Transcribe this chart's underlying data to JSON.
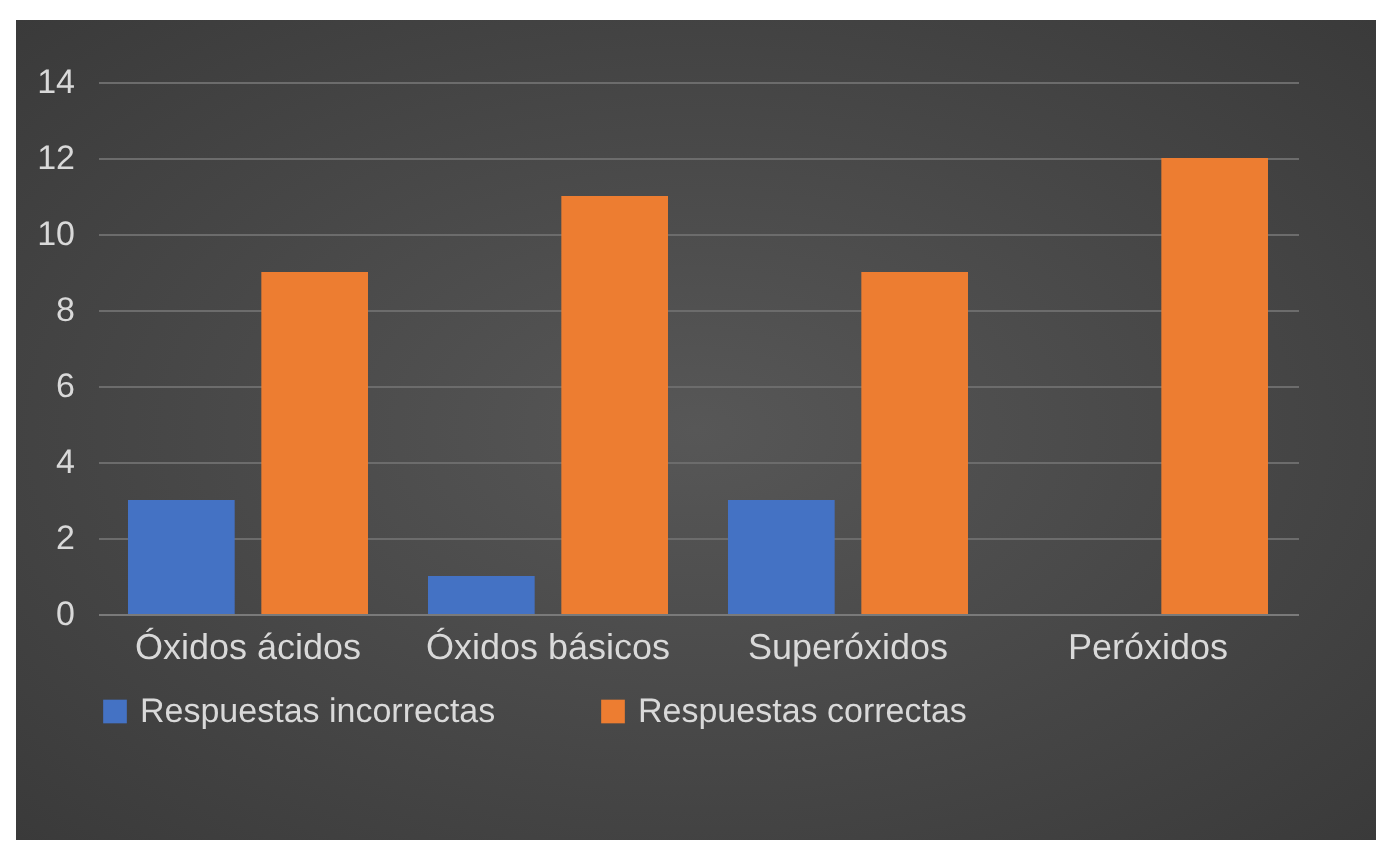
{
  "chart_data": {
    "type": "bar",
    "categories": [
      "Óxidos ácidos",
      "Óxidos básicos",
      "Superóxidos",
      "Peróxidos"
    ],
    "series": [
      {
        "name": "Respuestas incorrectas",
        "color": "#4472c4",
        "values": [
          3,
          1,
          3,
          0
        ]
      },
      {
        "name": "Respuestas correctas",
        "color": "#ed7d31",
        "values": [
          9,
          11,
          9,
          12
        ]
      }
    ],
    "ylim": [
      0,
      14
    ],
    "yticks": [
      0,
      2,
      4,
      6,
      8,
      10,
      12,
      14
    ],
    "grid": "y",
    "legend": "bottom"
  }
}
